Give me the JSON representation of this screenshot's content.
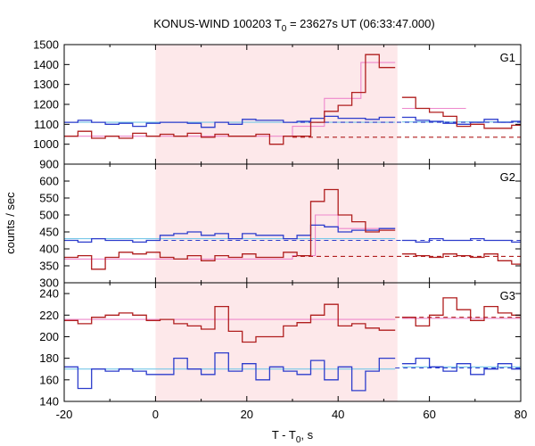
{
  "chart_data": {
    "type": "line",
    "title": {
      "main": "KONUS-WIND 100203 T",
      "sub": "0",
      "rest": " = 23627s UT (06:33:47.000)"
    },
    "xlabel": {
      "main": "T - T",
      "sub": "0",
      "rest": ", s"
    },
    "ylabel": "counts / sec",
    "xlim": [
      -20,
      80
    ],
    "x_ticks": [
      -20,
      0,
      20,
      40,
      60,
      80
    ],
    "highlight_interval": [
      0,
      53
    ],
    "colors": {
      "highlight": "#fde8ea",
      "red_series": "#b01e1e",
      "blue_series": "#2c3ccc",
      "pink_fit": "#ee88cc",
      "cyan_fit": "#77c8e8"
    },
    "panels": [
      {
        "label": "G1",
        "ylim": [
          900,
          1500
        ],
        "y_ticks": [
          900,
          1000,
          1100,
          1200,
          1300,
          1400,
          1500
        ],
        "series": [
          {
            "role": "red-histogram",
            "x": [
              -20,
              -17,
              -14,
              -11,
              -8,
              -5,
              -2,
              1,
              4,
              7,
              10,
              13,
              16,
              19,
              22,
              25,
              28,
              31,
              34,
              37,
              40,
              43,
              46,
              49,
              52.5
            ],
            "values": [
              1040,
              1065,
              1030,
              1040,
              1030,
              1055,
              1040,
              1050,
              1040,
              1055,
              1035,
              1050,
              1040,
              1040,
              1050,
              1000,
              1040,
              1040,
              1110,
              1165,
              1195,
              1260,
              1450,
              1385,
              1385
            ]
          },
          {
            "role": "blue-histogram",
            "x": [
              -20,
              -17,
              -14,
              -11,
              -8,
              -5,
              -2,
              1,
              4,
              7,
              10,
              13,
              16,
              19,
              22,
              25,
              28,
              31,
              34,
              37,
              40,
              43,
              46,
              49,
              52.5
            ],
            "values": [
              1110,
              1120,
              1110,
              1100,
              1105,
              1090,
              1105,
              1110,
              1110,
              1105,
              1085,
              1110,
              1100,
              1125,
              1120,
              1120,
              1110,
              1115,
              1130,
              1140,
              1130,
              1130,
              1125,
              1135,
              1135
            ]
          },
          {
            "role": "red-histogram-post",
            "x": [
              54,
              57,
              60,
              63,
              66,
              69,
              72,
              75,
              78,
              80
            ],
            "values": [
              1235,
              1180,
              1160,
              1140,
              1090,
              1100,
              1080,
              1080,
              1095,
              1095
            ]
          },
          {
            "role": "blue-histogram-post",
            "x": [
              54,
              57,
              60,
              63,
              66,
              69,
              72,
              75,
              78,
              80
            ],
            "values": [
              1135,
              1120,
              1115,
              1105,
              1100,
              1110,
              1125,
              1110,
              1115,
              1115
            ]
          },
          {
            "role": "pink-fit",
            "x": [
              -20,
              0,
              30,
              37,
              45,
              52.5
            ],
            "values": [
              1040,
              1040,
              1090,
              1230,
              1410,
              1410
            ]
          },
          {
            "role": "pink-fit-post",
            "x": [
              54,
              60,
              68,
              68
            ],
            "values": [
              1180,
              1180,
              1180,
              1180
            ]
          },
          {
            "role": "cyan-fit",
            "x": [
              -20,
              52.5
            ],
            "values": [
              1110,
              1110
            ]
          },
          {
            "role": "cyan-fit-post",
            "x": [
              54,
              80
            ],
            "values": [
              1112,
              1112
            ]
          },
          {
            "role": "red-dashed",
            "x": [
              30,
              80
            ],
            "values": [
              1035,
              1035
            ]
          },
          {
            "role": "blue-dashed",
            "x": [
              30,
              80
            ],
            "values": [
              1110,
              1110
            ]
          }
        ]
      },
      {
        "label": "G2",
        "ylim": [
          300,
          650
        ],
        "y_ticks": [
          300,
          350,
          400,
          450,
          500,
          550,
          600
        ],
        "series": [
          {
            "role": "red-histogram",
            "x": [
              -20,
              -17,
              -14,
              -11,
              -8,
              -5,
              -2,
              1,
              4,
              7,
              10,
              13,
              16,
              19,
              22,
              25,
              28,
              31,
              34,
              37,
              40,
              43,
              46,
              49,
              52.5
            ],
            "values": [
              375,
              380,
              340,
              375,
              390,
              385,
              390,
              375,
              370,
              380,
              365,
              380,
              375,
              385,
              375,
              375,
              390,
              380,
              540,
              575,
              500,
              480,
              450,
              455,
              455
            ]
          },
          {
            "role": "blue-histogram",
            "x": [
              -20,
              -17,
              -14,
              -11,
              -8,
              -5,
              -2,
              1,
              4,
              7,
              10,
              13,
              16,
              19,
              22,
              25,
              28,
              31,
              34,
              37,
              40,
              43,
              46,
              49,
              52.5
            ],
            "values": [
              425,
              420,
              430,
              425,
              425,
              420,
              425,
              440,
              445,
              450,
              440,
              445,
              430,
              445,
              440,
              440,
              430,
              440,
              470,
              465,
              450,
              455,
              455,
              460,
              460
            ]
          },
          {
            "role": "red-histogram-post",
            "x": [
              54,
              57,
              60,
              63,
              66,
              69,
              72,
              75,
              78,
              80
            ],
            "values": [
              385,
              380,
              375,
              385,
              380,
              375,
              385,
              365,
              355,
              355
            ]
          },
          {
            "role": "blue-histogram-post",
            "x": [
              54,
              57,
              60,
              63,
              66,
              69,
              72,
              75,
              78,
              80
            ],
            "values": [
              425,
              420,
              430,
              425,
              425,
              430,
              425,
              425,
              420,
              420
            ]
          },
          {
            "role": "pink-fit",
            "x": [
              -20,
              0,
              30,
              35,
              40,
              52.5
            ],
            "values": [
              370,
              370,
              380,
              500,
              460,
              430
            ]
          },
          {
            "role": "cyan-fit",
            "x": [
              -20,
              52.5
            ],
            "values": [
              430,
              430
            ]
          },
          {
            "role": "red-dashed",
            "x": [
              30,
              80
            ],
            "values": [
              378,
              378
            ]
          },
          {
            "role": "blue-dashed",
            "x": [
              0,
              80
            ],
            "values": [
              425,
              425
            ]
          }
        ]
      },
      {
        "label": "G3",
        "ylim": [
          140,
          250
        ],
        "y_ticks": [
          140,
          160,
          180,
          200,
          220,
          240
        ],
        "series": [
          {
            "role": "red-histogram",
            "x": [
              -20,
              -17,
              -14,
              -11,
              -8,
              -5,
              -2,
              1,
              4,
              7,
              10,
              13,
              16,
              19,
              22,
              25,
              28,
              31,
              34,
              37,
              40,
              43,
              46,
              49,
              52.5
            ],
            "values": [
              215,
              212,
              218,
              220,
              222,
              220,
              215,
              216,
              212,
              210,
              207,
              228,
              205,
              195,
              200,
              200,
              210,
              213,
              220,
              230,
              210,
              212,
              208,
              206,
              206
            ]
          },
          {
            "role": "blue-histogram",
            "x": [
              -20,
              -17,
              -14,
              -11,
              -8,
              -5,
              -2,
              1,
              4,
              7,
              10,
              13,
              16,
              19,
              22,
              25,
              28,
              31,
              34,
              37,
              40,
              43,
              46,
              49,
              52.5
            ],
            "values": [
              172,
              152,
              170,
              168,
              170,
              168,
              165,
              165,
              180,
              170,
              165,
              185,
              168,
              175,
              160,
              172,
              168,
              165,
              178,
              160,
              172,
              150,
              168,
              180,
              180
            ]
          },
          {
            "role": "red-histogram-post",
            "x": [
              54,
              57,
              60,
              63,
              66,
              69,
              72,
              75,
              78,
              80
            ],
            "values": [
              218,
              210,
              220,
              236,
              225,
              215,
              228,
              222,
              220,
              220
            ]
          },
          {
            "role": "blue-histogram-post",
            "x": [
              54,
              57,
              60,
              63,
              66,
              69,
              72,
              75,
              78,
              80
            ],
            "values": [
              175,
              180,
              172,
              168,
              175,
              165,
              170,
              175,
              170,
              170
            ]
          },
          {
            "role": "pink-fit",
            "x": [
              -20,
              52.5
            ],
            "values": [
              216,
              216
            ]
          },
          {
            "role": "pink-fit-post",
            "x": [
              54,
              80
            ],
            "values": [
              217,
              217
            ]
          },
          {
            "role": "cyan-fit",
            "x": [
              -20,
              52.5
            ],
            "values": [
              170,
              170
            ]
          },
          {
            "role": "cyan-fit-post",
            "x": [
              54,
              80
            ],
            "values": [
              172,
              172
            ]
          },
          {
            "role": "red-dashed",
            "x": [
              52.5,
              80
            ],
            "values": [
              218,
              218
            ]
          },
          {
            "role": "blue-dashed",
            "x": [
              52.5,
              80
            ],
            "values": [
              171,
              171
            ]
          }
        ]
      }
    ]
  }
}
